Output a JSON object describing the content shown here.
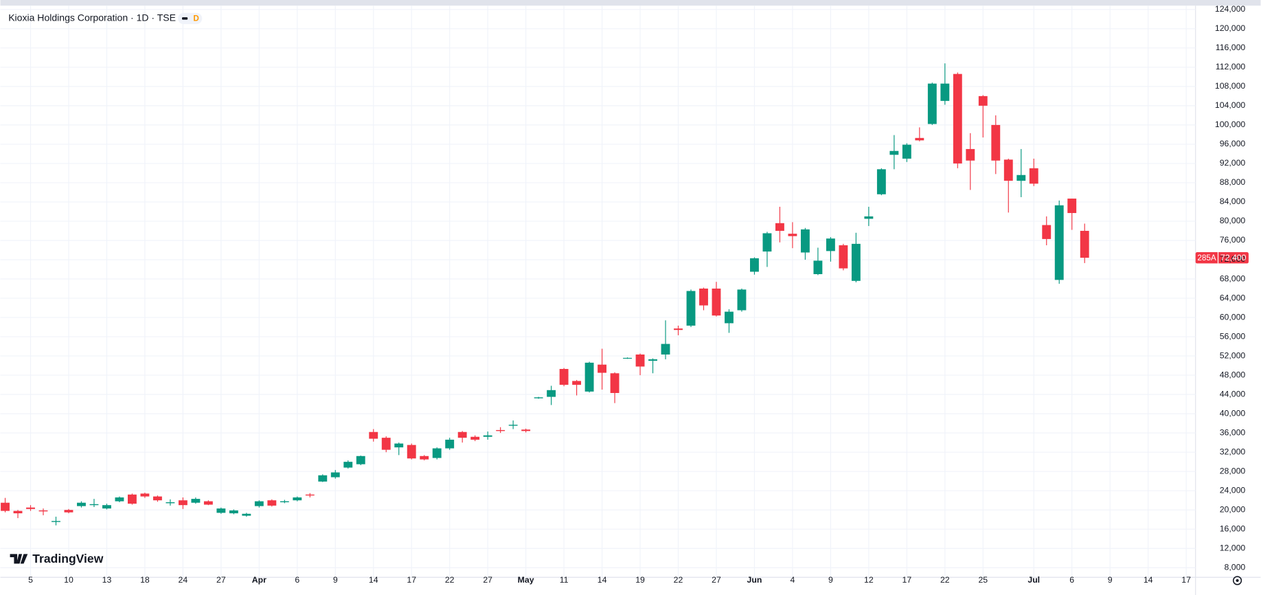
{
  "chart_data": {
    "type": "candlestick",
    "title": "Kioxia Holdings Corporation · 1D · TSE",
    "badge": "D",
    "brand": "TradingView",
    "up_color": "#089981",
    "down_color": "#f23645",
    "grid": true,
    "categories": [
      null,
      null,
      "5",
      null,
      null,
      "10",
      null,
      null,
      "13",
      null,
      null,
      "18",
      null,
      null,
      "24",
      null,
      null,
      "27",
      null,
      null,
      "Apr",
      null,
      null,
      "6",
      null,
      null,
      "9",
      null,
      null,
      "14",
      null,
      null,
      "17",
      null,
      null,
      "22",
      null,
      null,
      "27",
      null,
      null,
      "May",
      null,
      null,
      "11",
      null,
      null,
      "14",
      null,
      null,
      "19",
      null,
      null,
      "22",
      null,
      null,
      "27",
      null,
      null,
      "Jun",
      null,
      null,
      "4",
      null,
      null,
      "9",
      null,
      null,
      "12",
      null,
      null,
      "17",
      null,
      null,
      "22",
      null,
      null,
      "25",
      null,
      null,
      null,
      "Jul",
      null,
      null,
      "6",
      null,
      null,
      "9",
      null,
      null,
      "14",
      null,
      null,
      "17"
    ],
    "open": [
      21500,
      19800,
      20500,
      19900,
      17500,
      20000,
      20800,
      21000,
      20300,
      21800,
      23200,
      23400,
      22800,
      21400,
      22000,
      21500,
      21800,
      19400,
      19300,
      18800,
      20800,
      22000,
      21600,
      22000,
      23200,
      25900,
      26800,
      28800,
      29500,
      36200,
      35000,
      33000,
      33500,
      31200,
      30800,
      32800,
      36200,
      35200,
      35200,
      36600,
      37500,
      36700,
      43200,
      43500,
      49300,
      46800,
      44600,
      50200,
      48400,
      51500,
      52300,
      51000,
      52300,
      57700,
      58300,
      66000,
      66000,
      58800,
      61500,
      69500,
      73700,
      79600,
      77400,
      73500,
      69000,
      73800,
      75000,
      67600,
      80500,
      85600,
      93800,
      93000,
      97300,
      100200,
      105000,
      110600,
      95000,
      106000,
      100000,
      92800,
      88400,
      91000,
      79200,
      67800,
      84700,
      78000,
      null,
      null,
      null,
      null,
      null,
      null,
      null,
      null
    ],
    "high": [
      22500,
      20000,
      21000,
      20300,
      18600,
      20200,
      21800,
      22300,
      21300,
      22800,
      23400,
      23600,
      23000,
      22200,
      22600,
      22600,
      22000,
      20500,
      20100,
      19400,
      22000,
      22200,
      22100,
      22800,
      23500,
      27400,
      28300,
      30300,
      31300,
      36800,
      35300,
      34000,
      33800,
      31400,
      33000,
      35000,
      36400,
      35500,
      36300,
      37200,
      38600,
      36900,
      43500,
      45800,
      49500,
      47000,
      50800,
      53500,
      48600,
      51700,
      52500,
      51500,
      59400,
      58300,
      65800,
      66200,
      67400,
      61700,
      66000,
      72500,
      77800,
      83000,
      79800,
      78600,
      74500,
      76700,
      75300,
      77600,
      83000,
      91000,
      97900,
      96200,
      99500,
      108800,
      112800,
      110900,
      98300,
      106200,
      102000,
      93000,
      95000,
      93000,
      81000,
      84300,
      84700,
      79500,
      null,
      null,
      null,
      null,
      null,
      null,
      null,
      null
    ],
    "low": [
      19500,
      18300,
      19800,
      18900,
      16800,
      19300,
      20500,
      20600,
      20100,
      21600,
      21100,
      22500,
      21700,
      20900,
      20200,
      21300,
      21000,
      19200,
      19100,
      18600,
      20500,
      20700,
      21400,
      21800,
      22600,
      25800,
      26500,
      28600,
      29300,
      34200,
      32000,
      31400,
      30500,
      30300,
      30500,
      32500,
      34000,
      34300,
      34600,
      36000,
      36800,
      36100,
      43100,
      41800,
      45700,
      43800,
      44400,
      45000,
      42200,
      51400,
      48000,
      48400,
      51300,
      56300,
      58000,
      61500,
      60200,
      56800,
      61200,
      68900,
      70500,
      75600,
      74400,
      72000,
      68800,
      71600,
      69800,
      67300,
      79000,
      85400,
      90800,
      92300,
      96600,
      100000,
      104200,
      91000,
      86500,
      97400,
      89800,
      81800,
      85000,
      87300,
      75000,
      67000,
      78200,
      71300,
      null,
      null,
      null,
      null,
      null,
      null,
      null,
      null
    ],
    "close": [
      19800,
      19300,
      20200,
      19700,
      17700,
      19500,
      21500,
      21200,
      21000,
      22600,
      21300,
      22800,
      22000,
      21600,
      21000,
      22300,
      21100,
      20300,
      19900,
      19200,
      21800,
      20900,
      21800,
      22600,
      23000,
      27200,
      27800,
      30000,
      31200,
      34800,
      32500,
      33800,
      30700,
      30500,
      32800,
      34600,
      35000,
      34600,
      35500,
      36400,
      37700,
      36400,
      43400,
      44900,
      46000,
      46000,
      50600,
      48500,
      44300,
      51600,
      49800,
      51300,
      54500,
      57400,
      65500,
      62500,
      60400,
      61200,
      65800,
      72300,
      77500,
      78000,
      76900,
      78300,
      71800,
      76400,
      70200,
      75300,
      81000,
      90800,
      94600,
      95900,
      96800,
      108600,
      108600,
      92000,
      92600,
      104000,
      92600,
      88400,
      89600,
      87800,
      76300,
      83300,
      81700,
      72400,
      null,
      null,
      null,
      null,
      null,
      null,
      null,
      null
    ],
    "ylim": [
      6000,
      124800
    ],
    "yticks": [
      {
        "value": 8000,
        "label": "8,000"
      },
      {
        "value": 12000,
        "label": "12,000"
      },
      {
        "value": 16000,
        "label": "16,000"
      },
      {
        "value": 20000,
        "label": "20,000"
      },
      {
        "value": 24000,
        "label": "24,000"
      },
      {
        "value": 28000,
        "label": "28,000"
      },
      {
        "value": 32000,
        "label": "32,000"
      },
      {
        "value": 36000,
        "label": "36,000"
      },
      {
        "value": 40000,
        "label": "40,000"
      },
      {
        "value": 44000,
        "label": "44,000"
      },
      {
        "value": 48000,
        "label": "48,000"
      },
      {
        "value": 52000,
        "label": "52,000"
      },
      {
        "value": 56000,
        "label": "56,000"
      },
      {
        "value": 60000,
        "label": "60,000"
      },
      {
        "value": 64000,
        "label": "64,000"
      },
      {
        "value": 68000,
        "label": "68,000"
      },
      {
        "value": 72000,
        "label": "72,000"
      },
      {
        "value": 76000,
        "label": "76,000"
      },
      {
        "value": 80000,
        "label": "80,000"
      },
      {
        "value": 84000,
        "label": "84,000"
      },
      {
        "value": 88000,
        "label": "88,000"
      },
      {
        "value": 92000,
        "label": "92,000"
      },
      {
        "value": 96000,
        "label": "96,000"
      },
      {
        "value": 100000,
        "label": "100,000"
      },
      {
        "value": 104000,
        "label": "104,000"
      },
      {
        "value": 108000,
        "label": "108,000"
      },
      {
        "value": 112000,
        "label": "112,000"
      },
      {
        "value": 116000,
        "label": "116,000"
      },
      {
        "value": 120000,
        "label": "120,000"
      },
      {
        "value": 124000,
        "label": "124,000"
      }
    ],
    "last_price": {
      "symbol": "285A",
      "value": 72400,
      "label": "72,400"
    }
  }
}
